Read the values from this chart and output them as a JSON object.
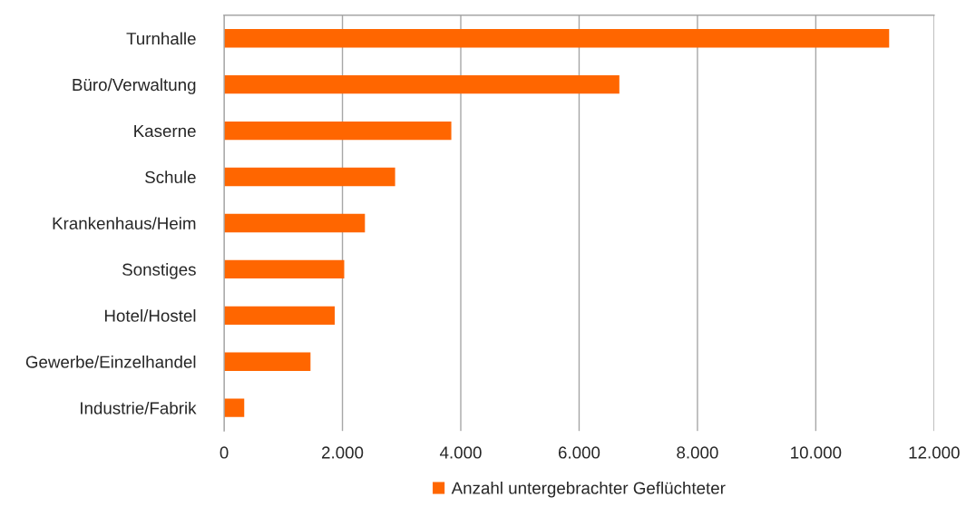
{
  "chart_data": {
    "type": "bar",
    "orientation": "horizontal",
    "categories": [
      "Turnhalle",
      "Büro/Verwaltung",
      "Kaserne",
      "Schule",
      "Krankenhaus/Heim",
      "Sonstiges",
      "Hotel/Hostel",
      "Gewerbe/Einzelhandel",
      "Industrie/Fabrik"
    ],
    "series": [
      {
        "name": "Anzahl untergebrachter Geflüchteter",
        "color": "#ff6600",
        "values": [
          11240,
          6680,
          3840,
          2890,
          2380,
          2030,
          1870,
          1460,
          340
        ]
      }
    ],
    "xlim": [
      0,
      12000
    ],
    "xticks": [
      0,
      {
        "value": 2000,
        "label": "2.000"
      },
      {
        "value": 4000,
        "label": "4.000"
      },
      {
        "value": 6000,
        "label": "6.000"
      },
      {
        "value": 8000,
        "label": "8.000"
      },
      {
        "value": 10000,
        "label": "10.000"
      },
      {
        "value": 12000,
        "label": "12.000"
      }
    ],
    "grid": "x",
    "legend": "bottom"
  }
}
